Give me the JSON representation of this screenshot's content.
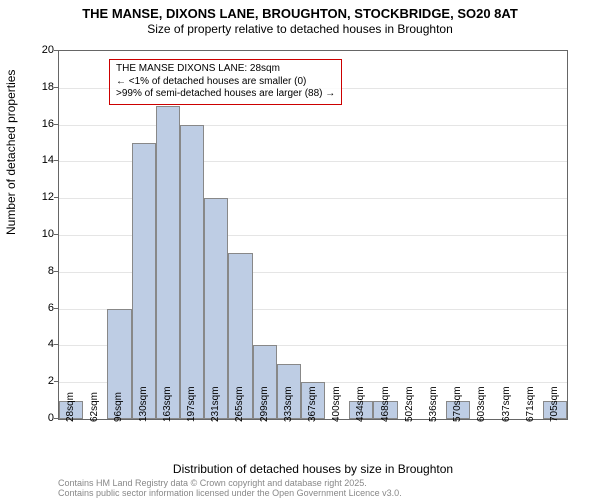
{
  "title": {
    "line1": "THE MANSE, DIXONS LANE, BROUGHTON, STOCKBRIDGE, SO20 8AT",
    "line2": "Size of property relative to detached houses in Broughton"
  },
  "chart": {
    "type": "histogram",
    "bar_color": "#becde4",
    "bar_border": "#888888",
    "background_color": "#ffffff",
    "grid_color": "#e5e5e5",
    "axis_color": "#666666",
    "ylim": [
      0,
      20
    ],
    "ytick_step": 2,
    "yticks": [
      0,
      2,
      4,
      6,
      8,
      10,
      12,
      14,
      16,
      18,
      20
    ],
    "categories": [
      "28sqm",
      "62sqm",
      "96sqm",
      "130sqm",
      "163sqm",
      "197sqm",
      "231sqm",
      "265sqm",
      "299sqm",
      "333sqm",
      "367sqm",
      "400sqm",
      "434sqm",
      "468sqm",
      "502sqm",
      "536sqm",
      "570sqm",
      "603sqm",
      "637sqm",
      "671sqm",
      "705sqm"
    ],
    "values": [
      1,
      0,
      6,
      15,
      17,
      16,
      12,
      9,
      4,
      3,
      2,
      0,
      1,
      1,
      0,
      0,
      1,
      0,
      0,
      0,
      1
    ],
    "bar_width": 1.0,
    "title_fontsize": 13,
    "label_fontsize": 12,
    "tick_fontsize": 11
  },
  "axes": {
    "ylabel": "Number of detached properties",
    "xlabel": "Distribution of detached houses by size in Broughton"
  },
  "callout": {
    "border_color": "#cc0000",
    "lines": [
      "THE MANSE DIXONS LANE: 28sqm",
      "← <1% of detached houses are smaller (0)",
      ">99% of semi-detached houses are larger (88) →"
    ]
  },
  "footer": {
    "line1": "Contains HM Land Registry data © Crown copyright and database right 2025.",
    "line2": "Contains public sector information licensed under the Open Government Licence v3.0."
  }
}
